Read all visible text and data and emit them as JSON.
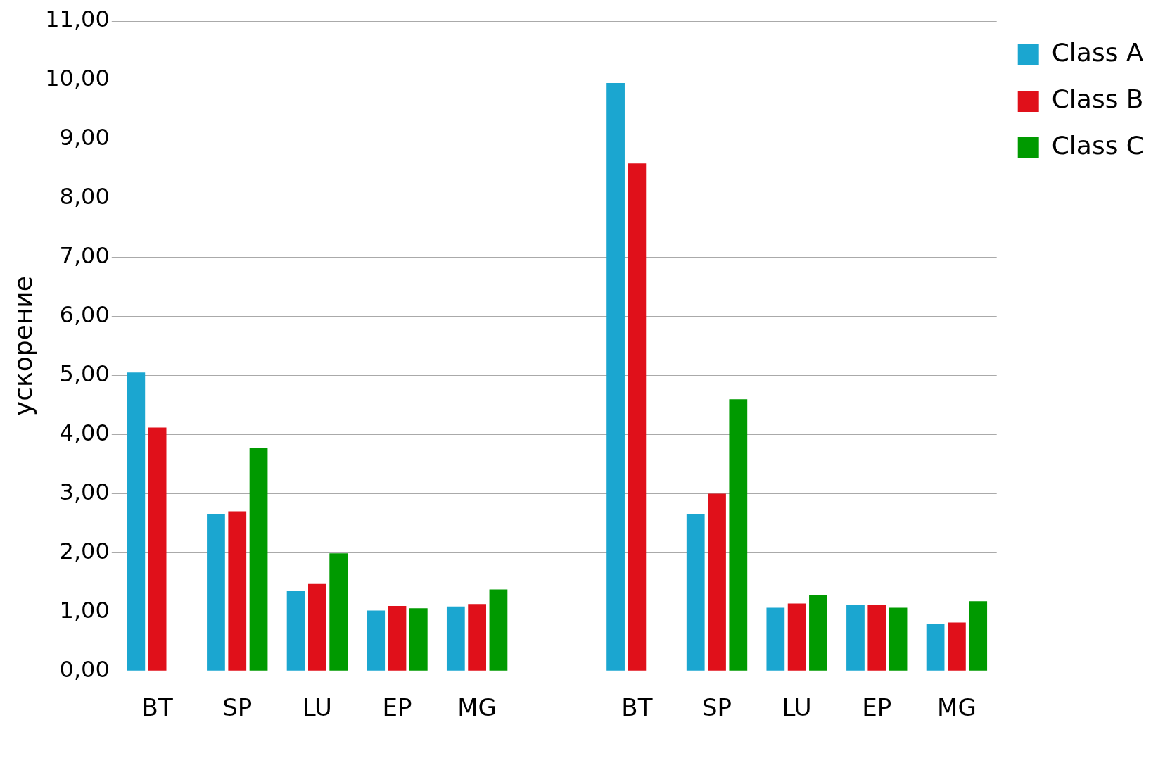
{
  "chart_data": {
    "type": "bar",
    "ylabel": "ускорение",
    "categories": [
      "BT",
      "SP",
      "LU",
      "EP",
      "MG",
      null,
      "BT",
      "SP",
      "LU",
      "EP",
      "MG"
    ],
    "series": [
      {
        "name": "Class A",
        "color": "#1ba6d0",
        "values": [
          5.05,
          2.65,
          1.35,
          1.02,
          1.09,
          null,
          9.95,
          2.66,
          1.07,
          1.11,
          0.8
        ]
      },
      {
        "name": "Class B",
        "color": "#e0101a",
        "values": [
          4.12,
          2.7,
          1.47,
          1.1,
          1.13,
          null,
          8.59,
          3.0,
          1.14,
          1.11,
          0.82
        ]
      },
      {
        "name": "Class C",
        "color": "#009a00",
        "values": [
          null,
          3.78,
          1.99,
          1.06,
          1.38,
          null,
          null,
          4.6,
          1.28,
          1.07,
          1.18
        ]
      }
    ],
    "ylim": [
      0,
      11
    ],
    "yticks": [
      {
        "value": 0,
        "label": "0,00"
      },
      {
        "value": 1,
        "label": "1,00"
      },
      {
        "value": 2,
        "label": "2,00"
      },
      {
        "value": 3,
        "label": "3,00"
      },
      {
        "value": 4,
        "label": "4,00"
      },
      {
        "value": 5,
        "label": "5,00"
      },
      {
        "value": 6,
        "label": "6,00"
      },
      {
        "value": 7,
        "label": "7,00"
      },
      {
        "value": 8,
        "label": "8,00"
      },
      {
        "value": 9,
        "label": "9,00"
      },
      {
        "value": 10,
        "label": "10,00"
      },
      {
        "value": 11,
        "label": "11,00"
      }
    ],
    "grid": "y",
    "legend": "top right"
  }
}
